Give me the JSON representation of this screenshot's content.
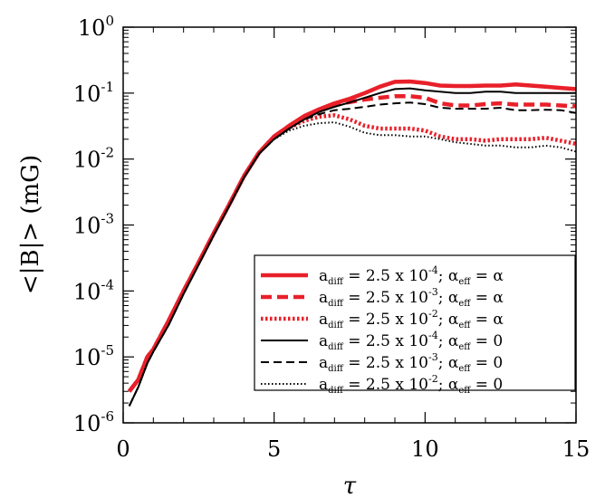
{
  "chart_data": {
    "type": "line",
    "title": "",
    "xlabel": "τ",
    "ylabel": "<|B|> (mG)",
    "xlim": [
      0,
      15
    ],
    "ylim": [
      1e-06,
      1
    ],
    "yscale": "log",
    "x_ticks": [
      "0",
      "5",
      "10",
      "15"
    ],
    "y_ticks": [
      {
        "base": "10",
        "exp": "0"
      },
      {
        "base": "10",
        "exp": "-1"
      },
      {
        "base": "10",
        "exp": "-2"
      },
      {
        "base": "10",
        "exp": "-3"
      },
      {
        "base": "10",
        "exp": "-4"
      },
      {
        "base": "10",
        "exp": "-5"
      },
      {
        "base": "10",
        "exp": "-6"
      }
    ],
    "legend_position": "bottom-right",
    "series": [
      {
        "legend": {
          "a": "a",
          "sub": "diff",
          "mid": " = 2.5 x 10",
          "exp": "-4",
          "sep": "; ",
          "alpha": "α",
          "alpha_sub": "eff",
          "rhs": " = α"
        },
        "color": "#e8202a",
        "style": "solid",
        "width": 4.5,
        "x": [
          0.2,
          0.5,
          0.8,
          1,
          1.5,
          2,
          2.5,
          3,
          3.5,
          4,
          4.5,
          5,
          5.5,
          6,
          6.5,
          7,
          7.5,
          8,
          8.5,
          9,
          9.5,
          10,
          10.5,
          11,
          11.5,
          12,
          12.5,
          13,
          13.5,
          14,
          14.5,
          15
        ],
        "y": [
          3e-06,
          4.5e-06,
          1e-05,
          1.3e-05,
          3.5e-05,
          0.0001,
          0.00027,
          0.00075,
          0.002,
          0.0055,
          0.0125,
          0.022,
          0.032,
          0.045,
          0.057,
          0.07,
          0.082,
          0.1,
          0.125,
          0.148,
          0.15,
          0.142,
          0.13,
          0.128,
          0.128,
          0.13,
          0.13,
          0.135,
          0.13,
          0.125,
          0.12,
          0.115
        ]
      },
      {
        "legend": {
          "a": "a",
          "sub": "diff",
          "mid": " = 2.5 x 10",
          "exp": "-3",
          "sep": "; ",
          "alpha": "α",
          "alpha_sub": "eff",
          "rhs": " = α"
        },
        "color": "#e8202a",
        "style": "dashed",
        "width": 4.5,
        "x": [
          0.2,
          0.5,
          0.8,
          1,
          1.5,
          2,
          2.5,
          3,
          3.5,
          4,
          4.5,
          5,
          5.5,
          6,
          6.5,
          7,
          7.5,
          8,
          8.5,
          9,
          9.5,
          10,
          10.5,
          11,
          11.5,
          12,
          12.5,
          13,
          13.5,
          14,
          14.5,
          15
        ],
        "y": [
          3e-06,
          4.5e-06,
          1e-05,
          1.3e-05,
          3.5e-05,
          0.0001,
          0.00027,
          0.00075,
          0.002,
          0.0055,
          0.0125,
          0.022,
          0.032,
          0.044,
          0.056,
          0.067,
          0.073,
          0.08,
          0.085,
          0.09,
          0.09,
          0.085,
          0.07,
          0.065,
          0.065,
          0.068,
          0.07,
          0.067,
          0.067,
          0.067,
          0.065,
          0.063
        ]
      },
      {
        "legend": {
          "a": "a",
          "sub": "diff",
          "mid": " = 2.5 x 10",
          "exp": "-2",
          "sep": "; ",
          "alpha": "α",
          "alpha_sub": "eff",
          "rhs": " = α"
        },
        "color": "#e8202a",
        "style": "dotted",
        "width": 4.5,
        "x": [
          0.2,
          0.5,
          0.8,
          1,
          1.5,
          2,
          2.5,
          3,
          3.5,
          4,
          4.5,
          5,
          5.5,
          6,
          6.5,
          7,
          7.5,
          8,
          8.5,
          9,
          9.5,
          10,
          10.5,
          11,
          11.5,
          12,
          12.5,
          13,
          13.5,
          14,
          14.5,
          15
        ],
        "y": [
          3e-06,
          4.5e-06,
          1e-05,
          1.3e-05,
          3.5e-05,
          0.0001,
          0.00027,
          0.00075,
          0.002,
          0.0055,
          0.0125,
          0.022,
          0.03,
          0.038,
          0.044,
          0.046,
          0.04,
          0.032,
          0.029,
          0.029,
          0.029,
          0.027,
          0.022,
          0.02,
          0.02,
          0.019,
          0.02,
          0.02,
          0.02,
          0.021,
          0.019,
          0.017
        ]
      },
      {
        "legend": {
          "a": "a",
          "sub": "diff",
          "mid": " = 2.5 x 10",
          "exp": "-4",
          "sep": "; ",
          "alpha": "α",
          "alpha_sub": "eff",
          "rhs": " = 0"
        },
        "color": "#000000",
        "style": "solid",
        "width": 2,
        "x": [
          0.2,
          0.5,
          0.8,
          1,
          1.5,
          2,
          2.5,
          3,
          3.5,
          4,
          4.5,
          5,
          5.5,
          6,
          6.5,
          7,
          7.5,
          8,
          8.5,
          9,
          9.5,
          10,
          10.5,
          11,
          11.5,
          12,
          12.5,
          13,
          13.5,
          14,
          14.5,
          15
        ],
        "y": [
          1.8e-06,
          3.5e-06,
          8e-06,
          1.2e-05,
          3e-05,
          9e-05,
          0.00025,
          0.0007,
          0.0019,
          0.0052,
          0.012,
          0.02,
          0.029,
          0.04,
          0.052,
          0.062,
          0.072,
          0.085,
          0.1,
          0.115,
          0.118,
          0.11,
          0.105,
          0.1,
          0.1,
          0.105,
          0.105,
          0.1,
          0.1,
          0.1,
          0.1,
          0.1
        ]
      },
      {
        "legend": {
          "a": "a",
          "sub": "diff",
          "mid": " = 2.5 x 10",
          "exp": "-3",
          "sep": "; ",
          "alpha": "α",
          "alpha_sub": "eff",
          "rhs": " = 0"
        },
        "color": "#000000",
        "style": "dashed",
        "width": 2,
        "x": [
          0.2,
          0.5,
          0.8,
          1,
          1.5,
          2,
          2.5,
          3,
          3.5,
          4,
          4.5,
          5,
          5.5,
          6,
          6.5,
          7,
          7.5,
          8,
          8.5,
          9,
          9.5,
          10,
          10.5,
          11,
          11.5,
          12,
          12.5,
          13,
          13.5,
          14,
          14.5,
          15
        ],
        "y": [
          1.8e-06,
          3.5e-06,
          8e-06,
          1.2e-05,
          3e-05,
          9e-05,
          0.00025,
          0.0007,
          0.0019,
          0.0052,
          0.012,
          0.02,
          0.029,
          0.04,
          0.048,
          0.055,
          0.058,
          0.062,
          0.067,
          0.07,
          0.072,
          0.068,
          0.06,
          0.058,
          0.058,
          0.058,
          0.06,
          0.055,
          0.055,
          0.056,
          0.055,
          0.05
        ]
      },
      {
        "legend": {
          "a": "a",
          "sub": "diff",
          "mid": " = 2.5 x 10",
          "exp": "-2",
          "sep": "; ",
          "alpha": "α",
          "alpha_sub": "eff",
          "rhs": " = 0"
        },
        "color": "#000000",
        "style": "dotted",
        "width": 2,
        "x": [
          0.2,
          0.5,
          0.8,
          1,
          1.5,
          2,
          2.5,
          3,
          3.5,
          4,
          4.5,
          5,
          5.5,
          6,
          6.5,
          7,
          7.5,
          8,
          8.5,
          9,
          9.5,
          10,
          10.5,
          11,
          11.5,
          12,
          12.5,
          13,
          13.5,
          14,
          14.5,
          15
        ],
        "y": [
          1.8e-06,
          3.5e-06,
          8e-06,
          1.2e-05,
          3e-05,
          9e-05,
          0.00025,
          0.0007,
          0.0019,
          0.0052,
          0.012,
          0.02,
          0.027,
          0.032,
          0.035,
          0.036,
          0.031,
          0.025,
          0.023,
          0.023,
          0.022,
          0.022,
          0.02,
          0.018,
          0.017,
          0.016,
          0.016,
          0.015,
          0.015,
          0.016,
          0.015,
          0.013
        ]
      }
    ]
  }
}
